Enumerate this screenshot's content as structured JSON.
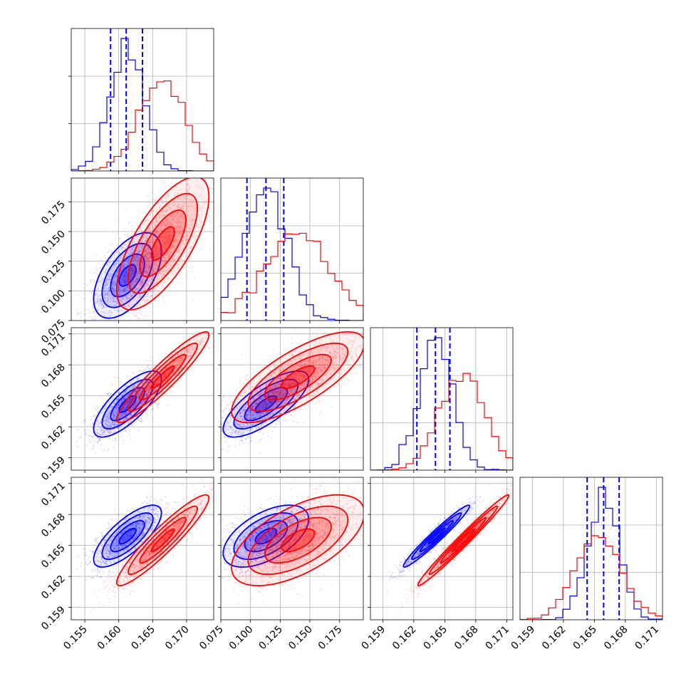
{
  "chart_data": {
    "type": "corner",
    "colors": {
      "blue": "#0000ff",
      "red": "#ff0000"
    },
    "grid": true,
    "parameters": [
      {
        "range": [
          0.153,
          0.174
        ],
        "ticks": [
          "0.155",
          "0.160",
          "0.165",
          "0.170"
        ],
        "tick_values": [
          0.155,
          0.16,
          0.165,
          0.17
        ]
      },
      {
        "range": [
          0.075,
          0.195
        ],
        "ticks": [
          "0.075",
          "0.100",
          "0.125",
          "0.150",
          "0.175"
        ],
        "tick_values": [
          0.075,
          0.1,
          0.125,
          0.15,
          0.175
        ]
      },
      {
        "range": [
          0.1578,
          0.1716
        ],
        "ticks": [
          "0.159",
          "0.162",
          "0.165",
          "0.168",
          "0.171"
        ],
        "tick_values": [
          0.159,
          0.162,
          0.165,
          0.168,
          0.171
        ]
      },
      {
        "range": [
          0.1578,
          0.1716
        ],
        "ticks": [
          "0.159",
          "0.162",
          "0.165",
          "0.168",
          "0.171"
        ],
        "tick_values": [
          0.159,
          0.162,
          0.165,
          0.168,
          0.171
        ]
      }
    ],
    "series": [
      {
        "color": "blue",
        "means": [
          0.1613,
          0.113,
          0.1642,
          0.1659
        ],
        "sds": [
          0.0025,
          0.018,
          0.0016,
          0.0015
        ],
        "quantiles": [
          [
            0.1588,
            0.1611,
            0.1635
          ],
          [
            0.097,
            0.113,
            0.128
          ],
          [
            0.1623,
            0.1641,
            0.1655
          ],
          [
            0.1643,
            0.1659,
            0.1674
          ]
        ],
        "correlations": [
          [
            0,
            1,
            0.55
          ],
          [
            0,
            2,
            0.75
          ],
          [
            0,
            3,
            0.75
          ],
          [
            1,
            2,
            0.75
          ],
          [
            1,
            3,
            0.55
          ],
          [
            2,
            3,
            0.97
          ]
        ]
      },
      {
        "color": "red",
        "means": [
          0.1665,
          0.14,
          0.1668,
          0.1655
        ],
        "sds": [
          0.0034,
          0.028,
          0.0022,
          0.0022
        ],
        "quantiles": null,
        "correlations": [
          [
            0,
            1,
            0.7
          ],
          [
            0,
            2,
            0.93
          ],
          [
            0,
            3,
            0.93
          ],
          [
            1,
            2,
            0.75
          ],
          [
            1,
            3,
            0.6
          ],
          [
            2,
            3,
            0.985
          ]
        ]
      }
    ]
  }
}
